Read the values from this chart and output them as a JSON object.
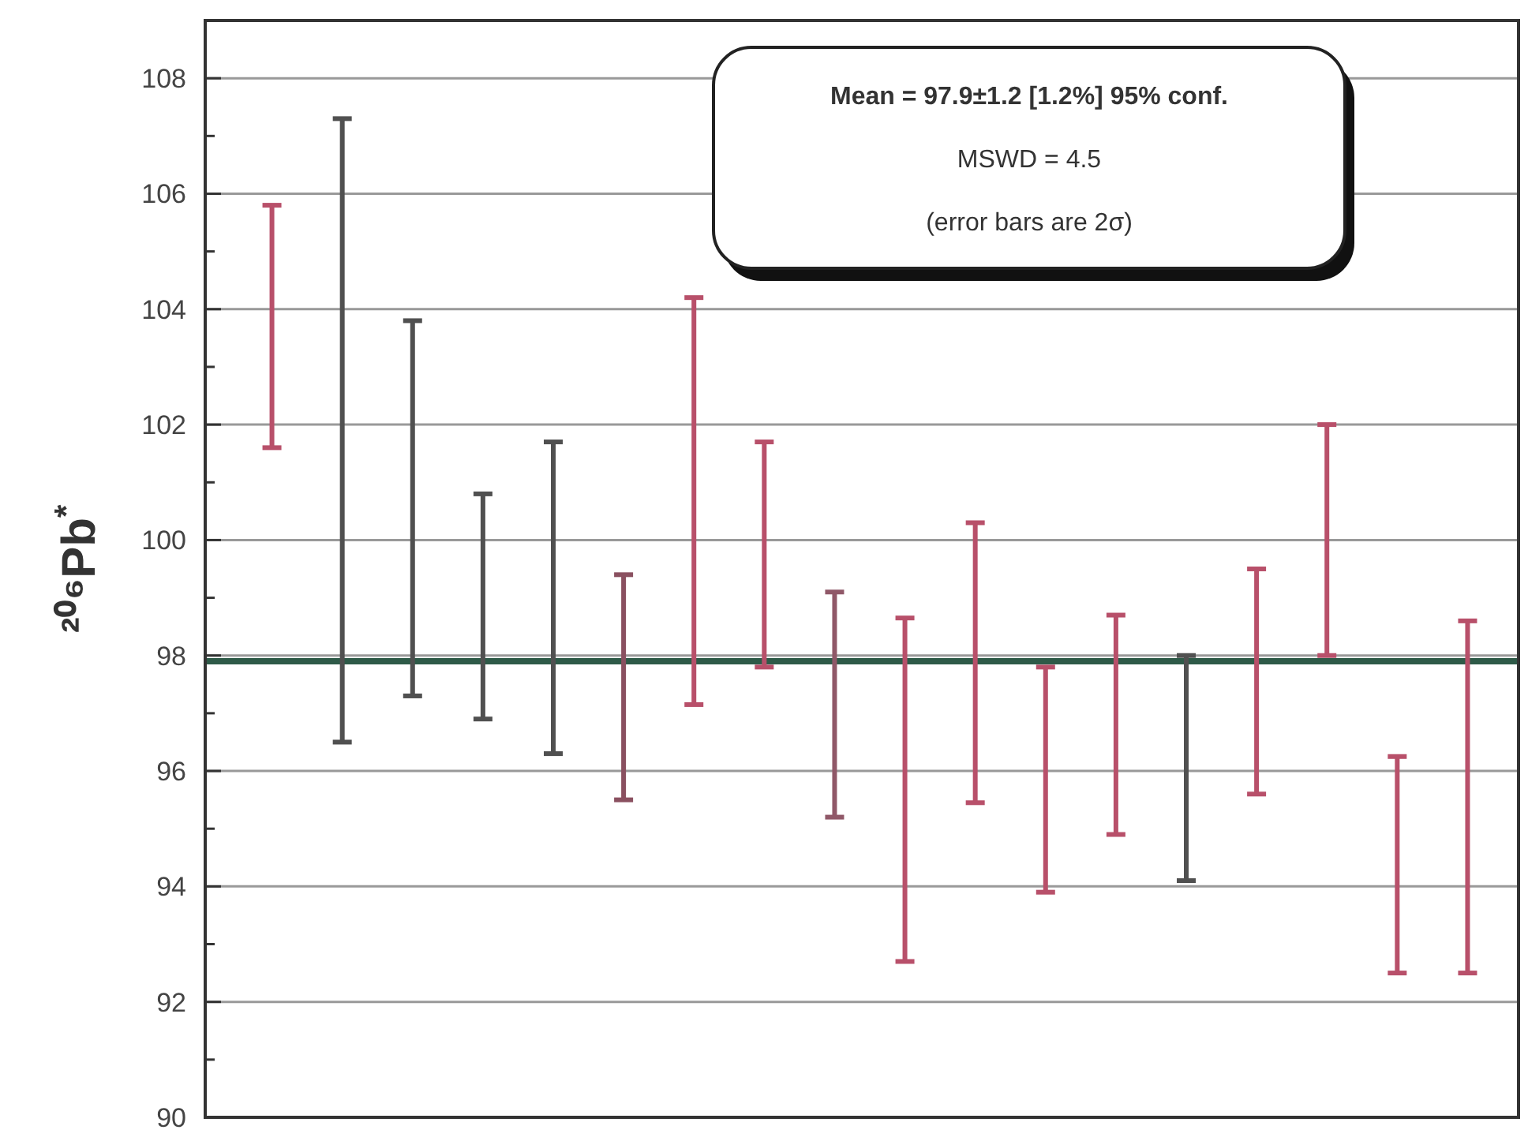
{
  "chart_data": {
    "type": "bar",
    "ylabel": "²⁰⁶Pb$^{*}$",
    "categories": [
      null,
      null,
      null,
      null,
      null,
      null,
      null,
      null,
      null,
      null,
      null,
      null,
      null,
      null,
      null,
      null,
      null,
      null
    ],
    "base": [
      101.6,
      96.5,
      97.3,
      96.9,
      96.3,
      95.5,
      97.15,
      97.8,
      95.2,
      92.7,
      95.45,
      93.9,
      94.9,
      94.1,
      95.6,
      98.0,
      92.5,
      92.5
    ],
    "values": [
      4.2,
      10.8,
      6.5,
      3.9,
      5.4,
      3.9,
      7.05,
      3.9,
      3.9,
      5.95,
      4.85,
      3.9,
      3.8,
      3.9,
      3.9,
      4.0,
      3.75,
      6.1
    ],
    "colors": [
      "#b8506a",
      "#505050",
      "#505050",
      "#505050",
      "#505050",
      "#8a5060",
      "#b8506a",
      "#b8506a",
      "#905868",
      "#b8506a",
      "#b8506a",
      "#b8506a",
      "#b8506a",
      "#505050",
      "#b8506a",
      "#b8506a",
      "#b8506a",
      "#b8506a"
    ],
    "ylim": [
      90,
      109
    ],
    "yticks": [
      90,
      {
        "value": 91,
        "label": null
      },
      92,
      {
        "value": 93,
        "label": null
      },
      94,
      {
        "value": 95,
        "label": null
      },
      96,
      {
        "value": 97,
        "label": null
      },
      98,
      {
        "value": 99,
        "label": null
      },
      100,
      {
        "value": 101,
        "label": null
      },
      102,
      {
        "value": 103,
        "label": null
      },
      104,
      {
        "value": 105,
        "label": null
      },
      106,
      {
        "value": 107,
        "label": null
      },
      108
    ],
    "grid": "y",
    "ref_lines": [
      {
        "axis": "y",
        "value": 97.9,
        "color": "#2e5a48"
      }
    ],
    "annotations": [
      "Mean = 97.9±1.2  [1.2%]  95% conf.",
      "MSWD = 4.5",
      "(error bars are 2σ)"
    ]
  }
}
